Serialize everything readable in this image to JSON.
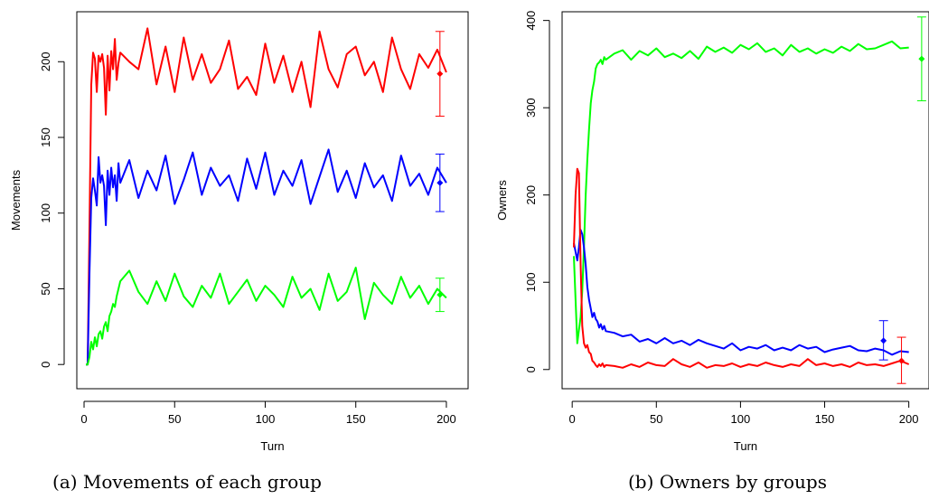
{
  "colors": {
    "red": "#ff0000",
    "blue": "#0000ff",
    "green": "#00ff00"
  },
  "chart_data": [
    {
      "type": "line",
      "caption": "(a) Movements of each group",
      "xlabel": "Turn",
      "ylabel": "Movements",
      "xlim": [
        -4,
        212
      ],
      "ylim": [
        -16,
        233
      ],
      "xticks": [
        0,
        50,
        100,
        150,
        200
      ],
      "yticks": [
        0,
        50,
        100,
        150,
        200
      ],
      "series": [
        {
          "color": "red",
          "x": [
            1,
            2,
            3,
            4,
            5,
            6,
            7,
            8,
            9,
            10,
            11,
            12,
            13,
            14,
            15,
            16,
            17,
            18,
            19,
            20,
            25,
            30,
            35,
            40,
            45,
            50,
            55,
            60,
            65,
            70,
            75,
            80,
            85,
            90,
            95,
            100,
            105,
            110,
            115,
            120,
            125,
            130,
            135,
            140,
            145,
            150,
            155,
            160,
            165,
            170,
            175,
            180,
            185,
            190,
            195,
            200
          ],
          "values": [
            0,
            0,
            90,
            185,
            206,
            202,
            180,
            204,
            200,
            205,
            196,
            165,
            204,
            181,
            207,
            195,
            215,
            188,
            199,
            206,
            200,
            195,
            222,
            185,
            210,
            180,
            216,
            188,
            205,
            186,
            195,
            214,
            182,
            190,
            178,
            212,
            186,
            204,
            180,
            200,
            170,
            220,
            195,
            183,
            205,
            210,
            191,
            200,
            180,
            216,
            195,
            182,
            205,
            196,
            208,
            193
          ],
          "summary": {
            "mean": 192,
            "low": 164,
            "high": 220
          }
        },
        {
          "color": "blue",
          "x": [
            1,
            2,
            3,
            4,
            5,
            6,
            7,
            8,
            9,
            10,
            11,
            12,
            13,
            14,
            15,
            16,
            17,
            18,
            19,
            20,
            25,
            30,
            35,
            40,
            45,
            50,
            55,
            60,
            65,
            70,
            75,
            80,
            85,
            90,
            95,
            100,
            105,
            110,
            115,
            120,
            125,
            130,
            135,
            140,
            145,
            150,
            155,
            160,
            165,
            170,
            175,
            180,
            185,
            190,
            195,
            200
          ],
          "values": [
            0,
            0,
            60,
            110,
            123,
            115,
            105,
            137,
            120,
            125,
            118,
            92,
            128,
            112,
            130,
            117,
            125,
            108,
            133,
            120,
            135,
            110,
            128,
            115,
            138,
            106,
            122,
            140,
            112,
            130,
            118,
            125,
            108,
            136,
            116,
            140,
            112,
            128,
            118,
            135,
            106,
            124,
            142,
            114,
            128,
            110,
            133,
            117,
            125,
            108,
            138,
            118,
            126,
            112,
            130,
            120
          ],
          "summary": {
            "mean": 120,
            "low": 101,
            "high": 139
          }
        },
        {
          "color": "green",
          "x": [
            1,
            2,
            3,
            4,
            5,
            6,
            7,
            8,
            9,
            10,
            11,
            12,
            13,
            14,
            15,
            16,
            17,
            18,
            19,
            20,
            25,
            30,
            35,
            40,
            45,
            50,
            55,
            60,
            65,
            70,
            75,
            80,
            85,
            90,
            95,
            100,
            105,
            110,
            115,
            120,
            125,
            130,
            135,
            140,
            145,
            150,
            155,
            160,
            165,
            170,
            175,
            180,
            185,
            190,
            195,
            200
          ],
          "values": [
            0,
            0,
            5,
            15,
            10,
            18,
            12,
            20,
            22,
            17,
            25,
            28,
            22,
            32,
            35,
            40,
            38,
            45,
            50,
            55,
            62,
            48,
            40,
            55,
            42,
            60,
            45,
            38,
            52,
            44,
            60,
            40,
            48,
            56,
            42,
            52,
            46,
            38,
            58,
            44,
            50,
            36,
            60,
            42,
            48,
            64,
            30,
            54,
            46,
            40,
            58,
            44,
            52,
            40,
            50,
            44
          ],
          "summary": {
            "mean": 46,
            "low": 35,
            "high": 57
          }
        }
      ]
    },
    {
      "type": "line",
      "caption": "(b) Owners by groups",
      "xlabel": "Turn",
      "ylabel": "Owners",
      "xlim": [
        -6,
        212
      ],
      "ylim": [
        -22,
        410
      ],
      "xticks": [
        0,
        50,
        100,
        150,
        200
      ],
      "yticks": [
        0,
        100,
        200,
        300,
        400
      ],
      "series": [
        {
          "color": "green",
          "x": [
            1,
            2,
            3,
            4,
            5,
            6,
            7,
            8,
            9,
            10,
            11,
            12,
            13,
            14,
            15,
            16,
            17,
            18,
            19,
            20,
            25,
            30,
            35,
            40,
            45,
            50,
            55,
            60,
            65,
            70,
            75,
            80,
            85,
            90,
            95,
            100,
            105,
            110,
            115,
            120,
            125,
            130,
            135,
            140,
            145,
            150,
            155,
            160,
            165,
            170,
            175,
            180,
            185,
            190,
            195,
            200
          ],
          "values": [
            130,
            80,
            30,
            45,
            60,
            90,
            140,
            200,
            240,
            275,
            305,
            320,
            330,
            345,
            350,
            352,
            355,
            350,
            358,
            355,
            362,
            366,
            355,
            365,
            360,
            368,
            358,
            362,
            357,
            365,
            356,
            370,
            364,
            369,
            363,
            372,
            367,
            374,
            364,
            368,
            360,
            372,
            364,
            368,
            362,
            367,
            363,
            370,
            365,
            373,
            367,
            368,
            372,
            376,
            368,
            369
          ],
          "summary": {
            "mean": 356,
            "low": 308,
            "high": 404
          }
        },
        {
          "color": "blue",
          "x": [
            1,
            2,
            3,
            4,
            5,
            6,
            7,
            8,
            9,
            10,
            11,
            12,
            13,
            14,
            15,
            16,
            17,
            18,
            19,
            20,
            25,
            30,
            35,
            40,
            45,
            50,
            55,
            60,
            65,
            70,
            75,
            80,
            85,
            90,
            95,
            100,
            105,
            110,
            115,
            120,
            125,
            130,
            135,
            140,
            145,
            150,
            155,
            160,
            165,
            170,
            175,
            180,
            185,
            190,
            195,
            200
          ],
          "values": [
            145,
            135,
            125,
            140,
            160,
            155,
            140,
            120,
            95,
            80,
            70,
            60,
            65,
            58,
            55,
            48,
            52,
            46,
            50,
            44,
            42,
            38,
            40,
            32,
            35,
            30,
            36,
            30,
            33,
            28,
            34,
            30,
            27,
            24,
            30,
            22,
            26,
            24,
            28,
            22,
            25,
            22,
            28,
            24,
            26,
            20,
            23,
            25,
            27,
            22,
            21,
            24,
            22,
            17,
            21,
            20
          ],
          "summary": {
            "mean": 33,
            "low": 11,
            "high": 56
          }
        },
        {
          "color": "red",
          "x": [
            1,
            2,
            3,
            4,
            5,
            6,
            7,
            8,
            9,
            10,
            11,
            12,
            13,
            14,
            15,
            16,
            17,
            18,
            19,
            20,
            25,
            30,
            35,
            40,
            45,
            50,
            55,
            60,
            65,
            70,
            75,
            80,
            85,
            90,
            95,
            100,
            105,
            110,
            115,
            120,
            125,
            130,
            135,
            140,
            145,
            150,
            155,
            160,
            165,
            170,
            175,
            180,
            185,
            190,
            195,
            200
          ],
          "values": [
            140,
            200,
            230,
            225,
            120,
            50,
            30,
            25,
            28,
            20,
            18,
            10,
            8,
            5,
            3,
            6,
            4,
            7,
            3,
            5,
            4,
            2,
            6,
            3,
            8,
            5,
            4,
            12,
            6,
            3,
            8,
            2,
            5,
            4,
            7,
            3,
            6,
            4,
            8,
            5,
            3,
            6,
            4,
            12,
            5,
            7,
            4,
            6,
            3,
            8,
            5,
            6,
            4,
            7,
            10,
            6
          ],
          "summary": {
            "mean": 10,
            "low": -16,
            "high": 37
          }
        }
      ]
    }
  ]
}
